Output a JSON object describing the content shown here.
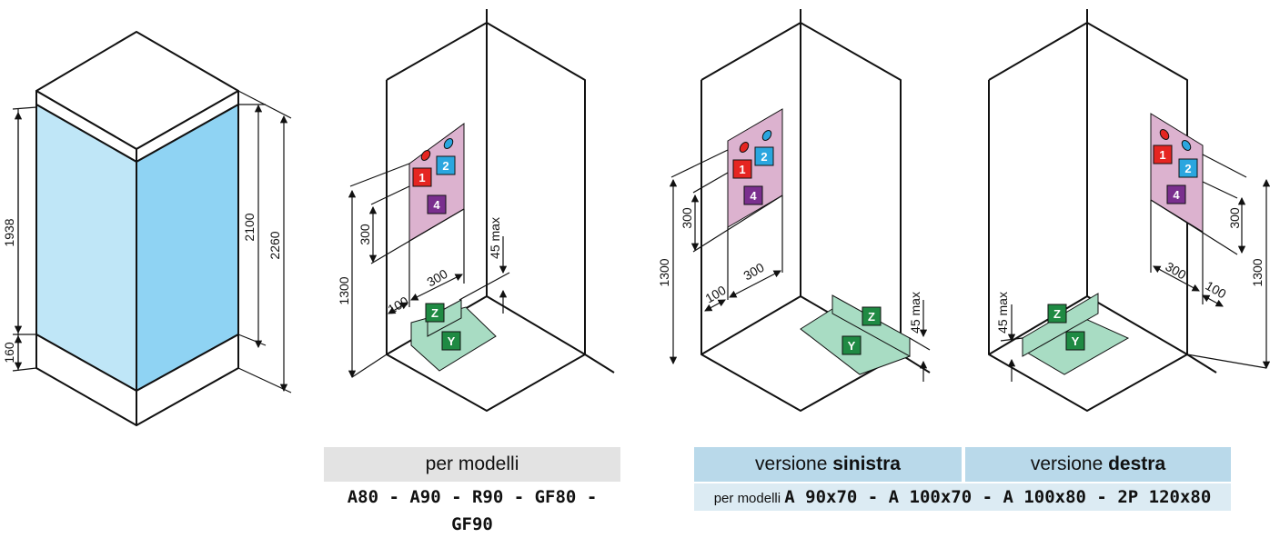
{
  "figure1": {
    "dimensions": {
      "glass_height": "1938",
      "base_height": "160",
      "inner_height": "2100",
      "total_height": "2260"
    }
  },
  "figure2": {
    "dimensions": {
      "panel_height": "300",
      "valve_height": "1300",
      "offset": "100",
      "panel_width": "300",
      "drain_max": "45 max"
    },
    "badges": [
      "1",
      "2",
      "4",
      "Z",
      "Y"
    ]
  },
  "figure3": {
    "dimensions": {
      "panel_height": "300",
      "valve_height": "1300",
      "offset": "100",
      "panel_width": "300",
      "drain_max": "45 max"
    },
    "badges": [
      "1",
      "2",
      "4",
      "Z",
      "Y"
    ]
  },
  "figure4": {
    "dimensions": {
      "panel_height": "300",
      "valve_height": "1300",
      "offset": "100",
      "panel_width": "300",
      "drain_max": "45 max"
    },
    "badges": [
      "1",
      "2",
      "4",
      "Z",
      "Y"
    ]
  },
  "captions": {
    "standard": {
      "label": "per modelli",
      "models": "A80 - A90 - R90 - GF80 - GF90"
    },
    "left": {
      "prefix": "versione ",
      "bold": "sinistra"
    },
    "right": {
      "prefix": "versione ",
      "bold": "destra"
    },
    "shared": {
      "prefix": "per modelli ",
      "models": "A 90x70 - A 100x70 - A 100x80 - 2P 120x80"
    }
  },
  "colors": {
    "glass_light": "#bfe6f7",
    "glass_dark": "#8fd3f3",
    "panel": "#dcb2cf",
    "tray": "#a8dcc3",
    "badge_red": "#e52521",
    "badge_blue": "#2aa6df",
    "badge_purple": "#7a2f8e",
    "badge_green": "#1f8a43",
    "caption_gray": "#e3e3e3",
    "caption_blue": "#b9d9ea",
    "caption_blue_light": "#dcebf3"
  }
}
